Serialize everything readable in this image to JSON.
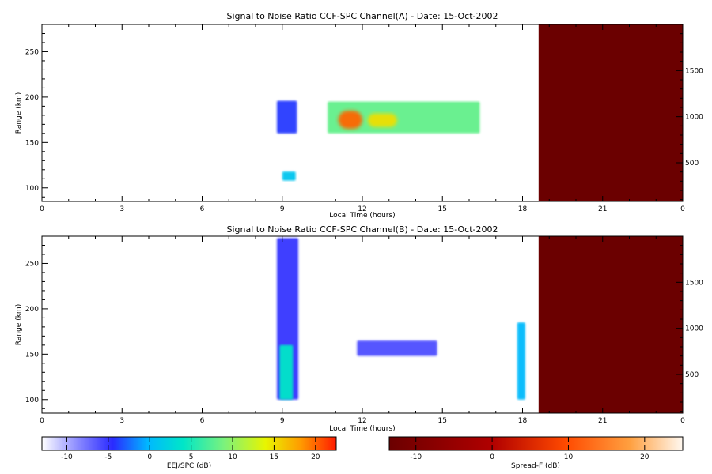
{
  "chart_data": [
    {
      "type": "heatmap",
      "title": "Signal to Noise Ratio CCF-SPC Channel(A) - Date: 15-Oct-2002",
      "xlabel": "Local Time (hours)",
      "ylabel": "Range (km)",
      "xlim": [
        0,
        24
      ],
      "ylim": [
        85,
        280
      ],
      "x_ticks": [
        "0",
        "3",
        "6",
        "9",
        "12",
        "15",
        "18",
        "21",
        "0"
      ],
      "y_ticks": [
        100,
        150,
        200,
        250
      ],
      "right_ylim": [
        80,
        2000
      ],
      "right_ticks": [
        500,
        1000,
        1500
      ],
      "colorbar": "EEJ/SPC (dB)",
      "regions": [
        {
          "t0": 8.8,
          "t1": 9.55,
          "r0": 160,
          "r1": 196,
          "db": -4
        },
        {
          "t0": 9.0,
          "t1": 9.5,
          "r0": 108,
          "r1": 118,
          "db": 1
        },
        {
          "t0": 10.7,
          "t1": 16.4,
          "r0": 160,
          "r1": 195,
          "db": 8
        },
        {
          "t0": 11.1,
          "t1": 12.0,
          "r0": 165,
          "r1": 185,
          "db": 20
        },
        {
          "t0": 12.2,
          "t1": 13.3,
          "r0": 167,
          "r1": 182,
          "db": 15
        }
      ],
      "spread_f": {
        "t0": 18.6,
        "t1": 24,
        "db": -14
      }
    },
    {
      "type": "heatmap",
      "title": "Signal to Noise Ratio CCF-SPC Channel(B) - Date: 15-Oct-2002",
      "xlabel": "Local Time (hours)",
      "ylabel": "Range (km)",
      "xlim": [
        0,
        24
      ],
      "ylim": [
        85,
        280
      ],
      "x_ticks": [
        "0",
        "3",
        "6",
        "9",
        "12",
        "15",
        "18",
        "21",
        "0"
      ],
      "y_ticks": [
        100,
        150,
        200,
        250
      ],
      "right_ylim": [
        80,
        2000
      ],
      "right_ticks": [
        500,
        1000,
        1500
      ],
      "colorbar": "Spread-F (dB)",
      "regions": [
        {
          "t0": 8.8,
          "t1": 9.6,
          "r0": 100,
          "r1": 278,
          "db": -5
        },
        {
          "t0": 8.9,
          "t1": 9.4,
          "r0": 100,
          "r1": 160,
          "db": 4
        },
        {
          "t0": 11.8,
          "t1": 14.8,
          "r0": 148,
          "r1": 165,
          "db": -6
        },
        {
          "t0": 17.8,
          "t1": 18.1,
          "r0": 100,
          "r1": 185,
          "db": 0
        }
      ],
      "spread_f": {
        "t0": 18.6,
        "t1": 24,
        "db": -14
      }
    }
  ],
  "colorbars": [
    {
      "label": "EEJ/SPC (dB)",
      "ticks": [
        "-10",
        "-5",
        "0",
        "5",
        "10",
        "15",
        "20"
      ],
      "min": -13,
      "max": 22.5,
      "palette": "rainbow"
    },
    {
      "label": "Spread-F (dB)",
      "ticks": [
        "-10",
        "0",
        "10",
        "20"
      ],
      "min": -13.5,
      "max": 25,
      "palette": "heat"
    }
  ],
  "colors": {
    "spread_f_background": "#6b0000",
    "axis": "#000000"
  }
}
